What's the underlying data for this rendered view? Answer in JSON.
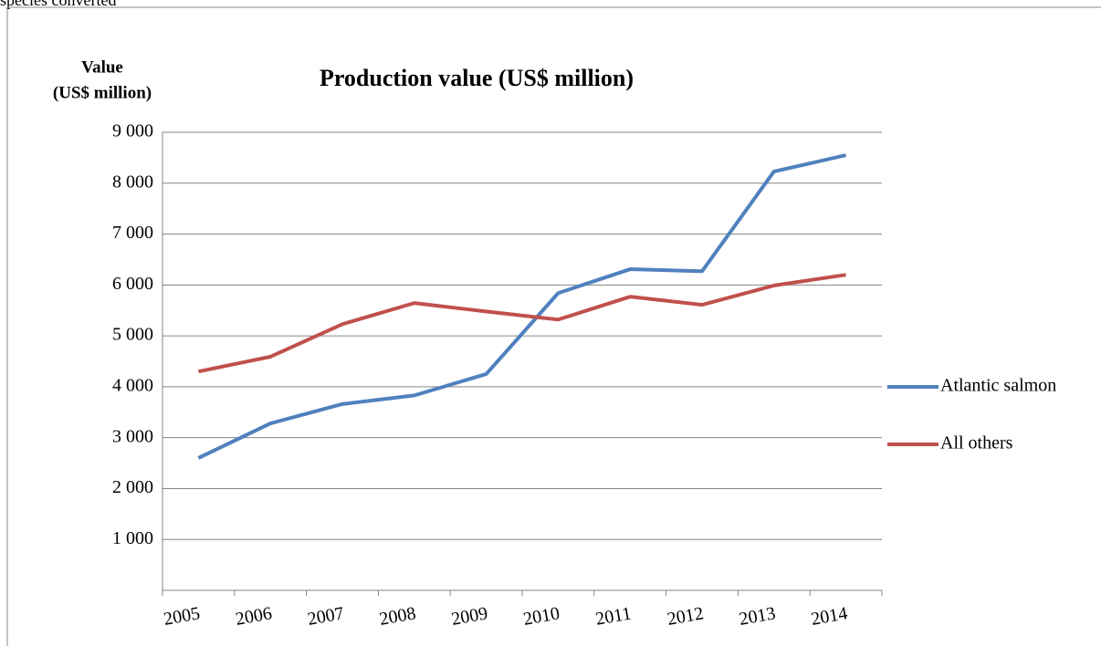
{
  "page_text": "species converted",
  "chart_data": {
    "type": "line",
    "title": "Production value (US$ million)",
    "ylabel": [
      "Value",
      "(US$ million)"
    ],
    "categories": [
      "2005",
      "2006",
      "2007",
      "2008",
      "2009",
      "2010",
      "2011",
      "2012",
      "2013",
      "2014"
    ],
    "series": [
      {
        "name": "Atlantic salmon",
        "color": "#4f81bd",
        "values": [
          2600,
          3280,
          3660,
          3830,
          4250,
          5840,
          6310,
          6270,
          8230,
          8550
        ]
      },
      {
        "name": "All others",
        "color": "#c0504d",
        "values": [
          4300,
          4590,
          5230,
          5645,
          5480,
          5320,
          5770,
          5610,
          5990,
          6200
        ]
      }
    ],
    "ylim": [
      0,
      9000
    ],
    "yticks": [
      {
        "value": 1000,
        "label": "1 000"
      },
      {
        "value": 2000,
        "label": "2 000"
      },
      {
        "value": 3000,
        "label": "3 000"
      },
      {
        "value": 4000,
        "label": "4 000"
      },
      {
        "value": 5000,
        "label": "5 000"
      },
      {
        "value": 6000,
        "label": "6 000"
      },
      {
        "value": 7000,
        "label": "7 000"
      },
      {
        "value": 8000,
        "label": "8 000"
      },
      {
        "value": 9000,
        "label": "9 000"
      }
    ],
    "grid": true,
    "legend": "right"
  }
}
